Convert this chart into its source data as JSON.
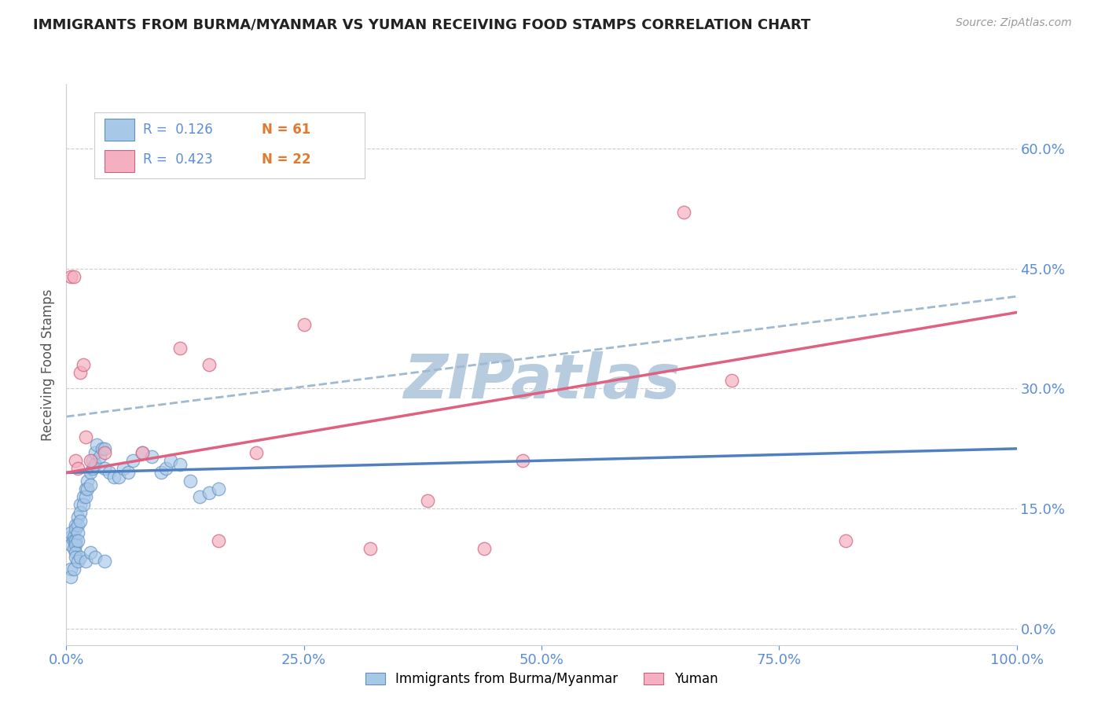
{
  "title": "IMMIGRANTS FROM BURMA/MYANMAR VS YUMAN RECEIVING FOOD STAMPS CORRELATION CHART",
  "source_text": "Source: ZipAtlas.com",
  "ylabel": "Receiving Food Stamps",
  "watermark": "ZIPatlas",
  "xlim": [
    0.0,
    1.0
  ],
  "ylim": [
    -0.02,
    0.68
  ],
  "yticks": [
    0.0,
    0.15,
    0.3,
    0.45,
    0.6
  ],
  "ytick_labels": [
    "0.0%",
    "15.0%",
    "30.0%",
    "45.0%",
    "60.0%"
  ],
  "xticks": [
    0.0,
    0.25,
    0.5,
    0.75,
    1.0
  ],
  "xtick_labels": [
    "0.0%",
    "25.0%",
    "50.0%",
    "75.0%",
    "100.0%"
  ],
  "blue_scatter_x": [
    0.005,
    0.005,
    0.005,
    0.008,
    0.008,
    0.008,
    0.01,
    0.01,
    0.01,
    0.01,
    0.01,
    0.01,
    0.012,
    0.012,
    0.012,
    0.012,
    0.015,
    0.015,
    0.015,
    0.018,
    0.018,
    0.02,
    0.02,
    0.022,
    0.022,
    0.025,
    0.025,
    0.028,
    0.028,
    0.03,
    0.03,
    0.032,
    0.035,
    0.038,
    0.04,
    0.04,
    0.045,
    0.05,
    0.055,
    0.06,
    0.065,
    0.07,
    0.08,
    0.09,
    0.1,
    0.105,
    0.11,
    0.12,
    0.13,
    0.14,
    0.15,
    0.16,
    0.005,
    0.005,
    0.008,
    0.012,
    0.015,
    0.02,
    0.025,
    0.03,
    0.04
  ],
  "blue_scatter_y": [
    0.115,
    0.12,
    0.105,
    0.115,
    0.11,
    0.1,
    0.13,
    0.125,
    0.11,
    0.105,
    0.095,
    0.09,
    0.14,
    0.13,
    0.12,
    0.11,
    0.155,
    0.145,
    0.135,
    0.165,
    0.155,
    0.175,
    0.165,
    0.185,
    0.175,
    0.195,
    0.18,
    0.21,
    0.2,
    0.22,
    0.205,
    0.23,
    0.215,
    0.225,
    0.225,
    0.2,
    0.195,
    0.19,
    0.19,
    0.2,
    0.195,
    0.21,
    0.22,
    0.215,
    0.195,
    0.2,
    0.21,
    0.205,
    0.185,
    0.165,
    0.17,
    0.175,
    0.075,
    0.065,
    0.075,
    0.085,
    0.09,
    0.085,
    0.095,
    0.09,
    0.085
  ],
  "pink_scatter_x": [
    0.005,
    0.008,
    0.01,
    0.012,
    0.015,
    0.018,
    0.02,
    0.025,
    0.04,
    0.08,
    0.12,
    0.15,
    0.16,
    0.2,
    0.25,
    0.32,
    0.38,
    0.44,
    0.48,
    0.65,
    0.7,
    0.82
  ],
  "pink_scatter_y": [
    0.44,
    0.44,
    0.21,
    0.2,
    0.32,
    0.33,
    0.24,
    0.21,
    0.22,
    0.22,
    0.35,
    0.33,
    0.11,
    0.22,
    0.38,
    0.1,
    0.16,
    0.1,
    0.21,
    0.52,
    0.31,
    0.11
  ],
  "blue_line": [
    0.0,
    1.0,
    0.195,
    0.225
  ],
  "pink_line": [
    0.0,
    1.0,
    0.195,
    0.395
  ],
  "dashed_line": [
    0.0,
    1.0,
    0.265,
    0.415
  ],
  "title_color": "#222222",
  "axis_color": "#5b8dd9",
  "blue_color": "#a8c8e8",
  "pink_color": "#f4b0c0",
  "blue_edge_color": "#6090c0",
  "pink_edge_color": "#d06080",
  "blue_line_color": "#5080c0",
  "pink_line_color": "#e06080",
  "dashed_line_color": "#a0b8d0",
  "grid_color": "#cccccc",
  "watermark_color": "#b8cce0",
  "source_color": "#999999",
  "legend_text_blue": "#5b8dd9",
  "legend_text_orange": "#e07a30"
}
